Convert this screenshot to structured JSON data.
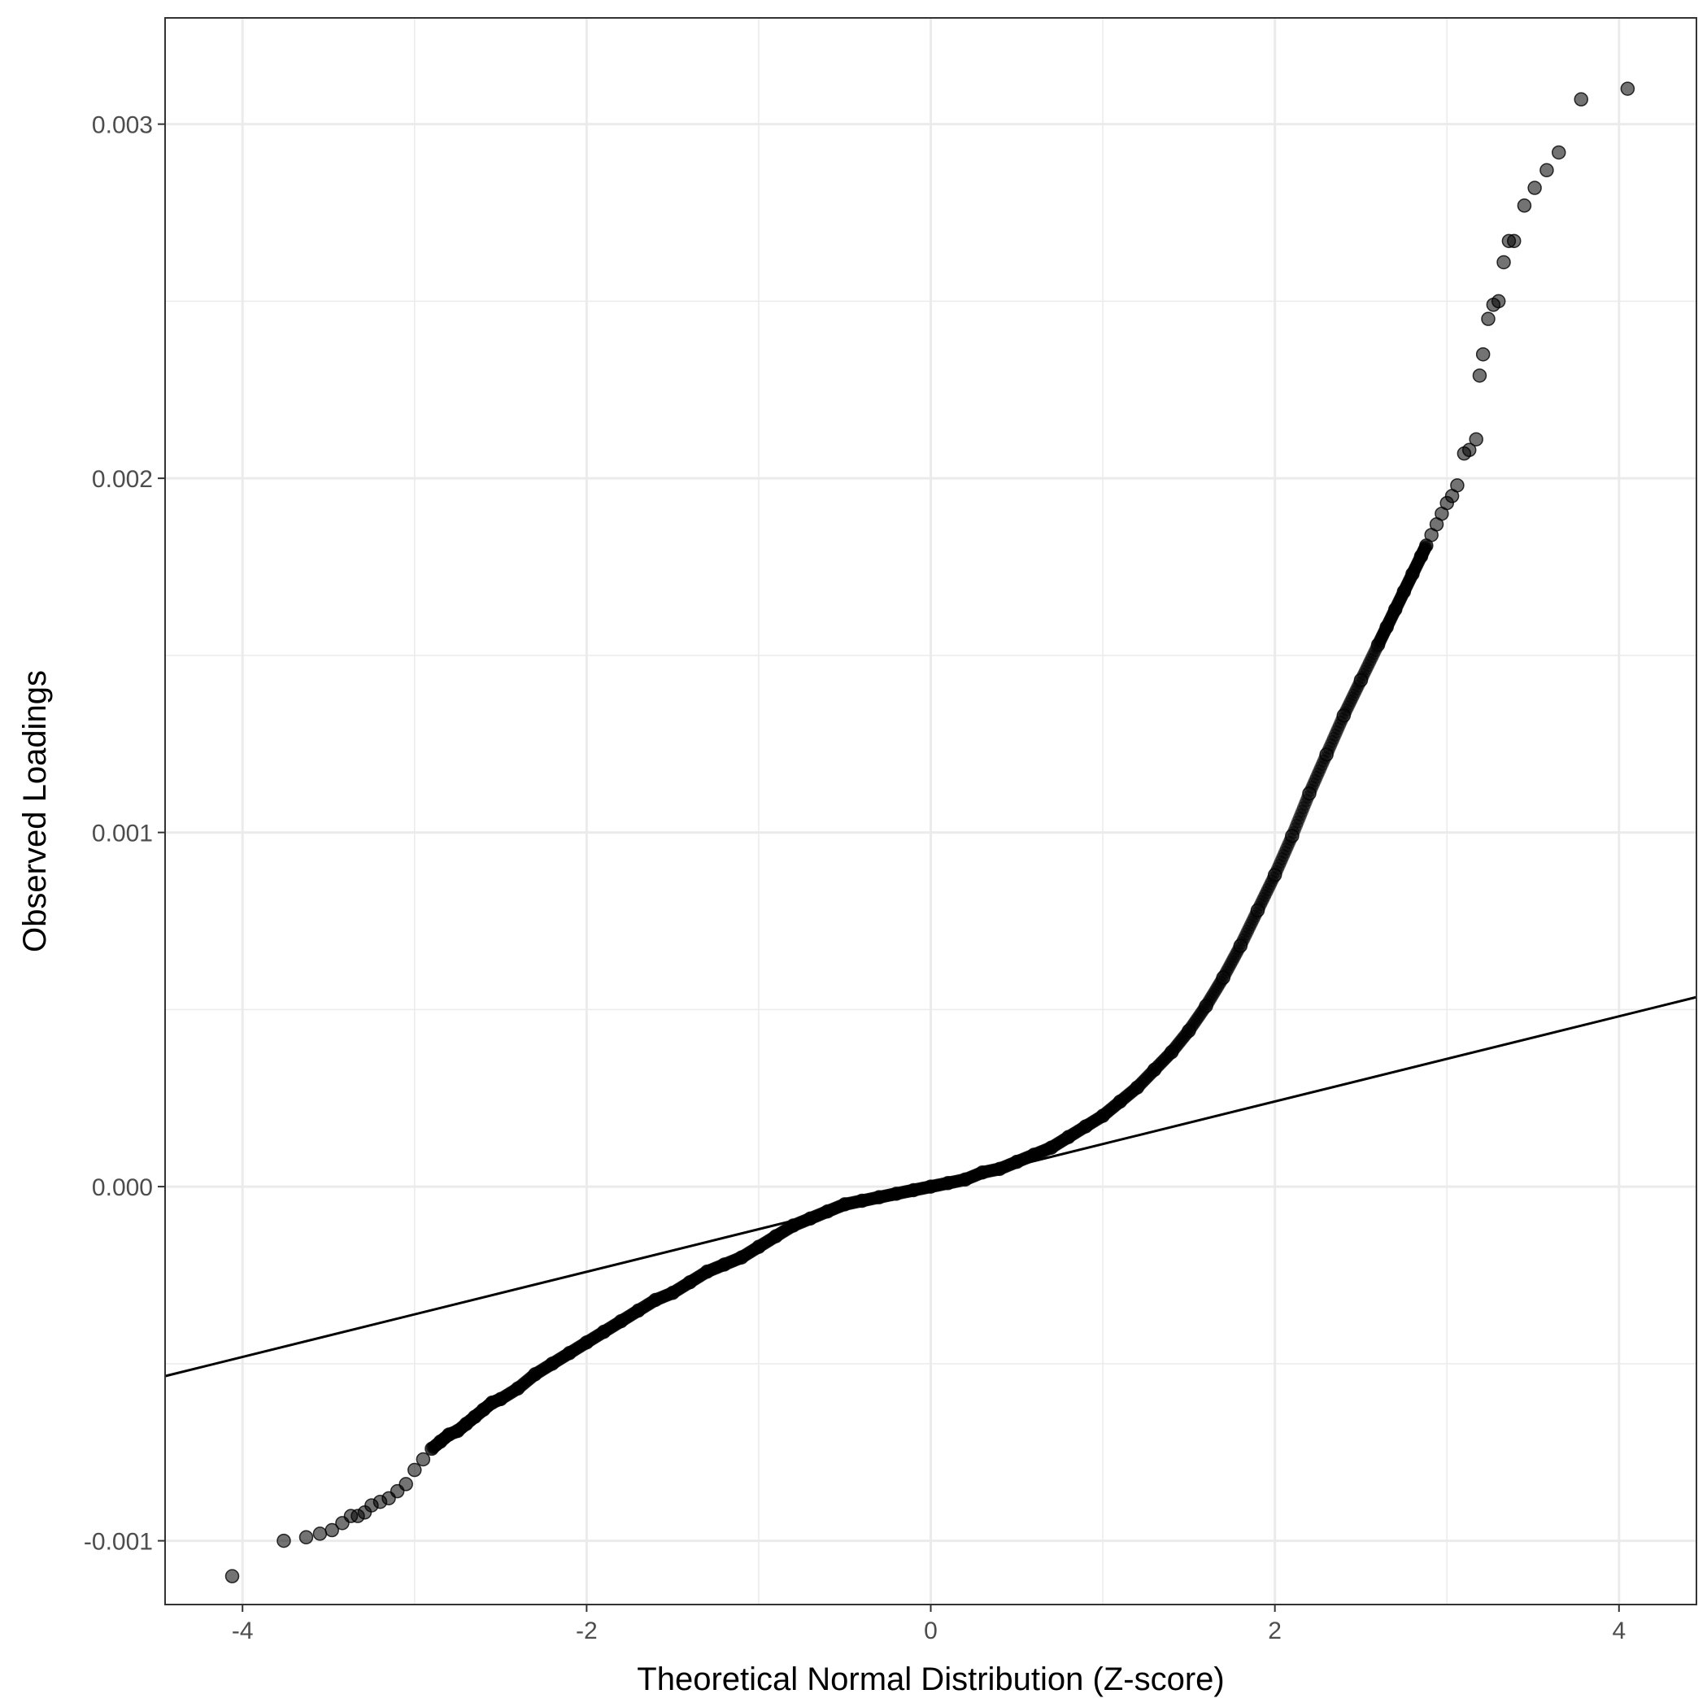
{
  "chart_data": {
    "type": "scatter",
    "title": "",
    "xlabel": "Theoretical Normal Distribution (Z-score)",
    "ylabel": "Observed Loadings",
    "xlim": [
      -4.45,
      4.45
    ],
    "ylim": [
      -0.00118,
      0.0033
    ],
    "x_ticks": [
      -4,
      -2,
      0,
      2,
      4
    ],
    "x_tick_labels": [
      "-4",
      "-2",
      "0",
      "2",
      "4"
    ],
    "y_ticks": [
      -0.001,
      0.0,
      0.001,
      0.002,
      0.003
    ],
    "y_tick_labels": [
      "-0.001",
      "0.000",
      "0.001",
      "0.002",
      "0.003"
    ],
    "grid": true,
    "point_color": "#000000",
    "point_opacity": 0.55,
    "line_color": "#000000",
    "reference_line": {
      "x": [
        -4.45,
        4.45
      ],
      "y": [
        -0.000535,
        0.000535
      ]
    },
    "points": {
      "x": [
        -4.06,
        -3.76,
        -3.63,
        -3.55,
        -3.48,
        -3.42,
        -3.37,
        -3.33,
        -3.29,
        -3.25,
        -3.2,
        -3.15,
        -3.1,
        -3.05,
        -3.0,
        -2.95,
        -2.9,
        -2.85,
        -2.8,
        -2.75,
        -2.7,
        -2.65,
        -2.6,
        -2.55,
        -2.5,
        -2.4,
        -2.3,
        -2.2,
        -2.1,
        -2.0,
        -1.9,
        -1.8,
        -1.7,
        -1.6,
        -1.5,
        -1.4,
        -1.3,
        -1.2,
        -1.1,
        -1.0,
        -0.9,
        -0.8,
        -0.7,
        -0.6,
        -0.5,
        -0.4,
        -0.3,
        -0.2,
        -0.1,
        0.0,
        0.1,
        0.2,
        0.3,
        0.4,
        0.5,
        0.6,
        0.7,
        0.8,
        0.9,
        1.0,
        1.1,
        1.2,
        1.3,
        1.4,
        1.5,
        1.6,
        1.7,
        1.8,
        1.9,
        2.0,
        2.1,
        2.2,
        2.3,
        2.4,
        2.5,
        2.6,
        2.65,
        2.7,
        2.75,
        2.8,
        2.85,
        2.88,
        2.91,
        2.94,
        2.97,
        3.0,
        3.03,
        3.06,
        3.1,
        3.13,
        3.17,
        3.19,
        3.21,
        3.24,
        3.27,
        3.3,
        3.33,
        3.36,
        3.39,
        3.45,
        3.51,
        3.58,
        3.65,
        3.78,
        4.05
      ],
      "y": [
        -0.0011,
        -0.001,
        -0.00099,
        -0.00098,
        -0.00097,
        -0.00095,
        -0.00093,
        -0.00093,
        -0.00092,
        -0.0009,
        -0.00089,
        -0.00088,
        -0.00086,
        -0.00084,
        -0.0008,
        -0.00077,
        -0.00074,
        -0.00072,
        -0.0007,
        -0.00069,
        -0.00067,
        -0.00065,
        -0.00063,
        -0.00061,
        -0.0006,
        -0.00057,
        -0.00053,
        -0.0005,
        -0.00047,
        -0.00044,
        -0.00041,
        -0.00038,
        -0.00035,
        -0.00032,
        -0.0003,
        -0.00027,
        -0.00024,
        -0.00022,
        -0.0002,
        -0.00017,
        -0.00014,
        -0.00011,
        -9e-05,
        -7e-05,
        -5e-05,
        -4e-05,
        -3e-05,
        -2e-05,
        -1e-05,
        0.0,
        1e-05,
        2e-05,
        4e-05,
        5e-05,
        7e-05,
        9e-05,
        0.00011,
        0.00014,
        0.00017,
        0.0002,
        0.00024,
        0.00028,
        0.00033,
        0.00038,
        0.00044,
        0.00051,
        0.00059,
        0.00068,
        0.00078,
        0.00088,
        0.00099,
        0.00111,
        0.00122,
        0.00133,
        0.00143,
        0.00153,
        0.00158,
        0.00163,
        0.00168,
        0.00173,
        0.00178,
        0.00181,
        0.00184,
        0.00187,
        0.0019,
        0.00193,
        0.00195,
        0.00198,
        0.00207,
        0.00208,
        0.00211,
        0.00229,
        0.00235,
        0.00245,
        0.00249,
        0.0025,
        0.00261,
        0.00267,
        0.00267,
        0.00277,
        0.00282,
        0.00287,
        0.00292,
        0.00307,
        0.0031
      ]
    }
  }
}
